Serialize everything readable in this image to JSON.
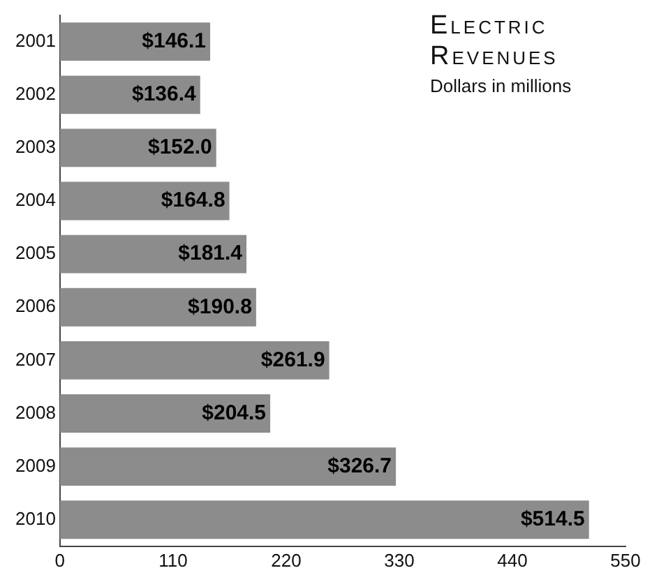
{
  "chart_data": {
    "type": "bar",
    "orientation": "horizontal",
    "title": "Electric Revenues",
    "subtitle": "Dollars in millions",
    "categories": [
      "2001",
      "2002",
      "2003",
      "2004",
      "2005",
      "2006",
      "2007",
      "2008",
      "2009",
      "2010"
    ],
    "values": [
      146.1,
      136.4,
      152.0,
      164.8,
      181.4,
      190.8,
      261.9,
      204.5,
      326.7,
      514.5
    ],
    "value_labels": [
      "$146.1",
      "$136.4",
      "$152.0",
      "$164.8",
      "$181.4",
      "$190.8",
      "$261.9",
      "$204.5",
      "$326.7",
      "$514.5"
    ],
    "color": "#8c8c8c",
    "xlim": [
      0,
      550
    ],
    "xticks": [
      0,
      110,
      220,
      330,
      440,
      550
    ],
    "grid": false,
    "legend": false
  }
}
